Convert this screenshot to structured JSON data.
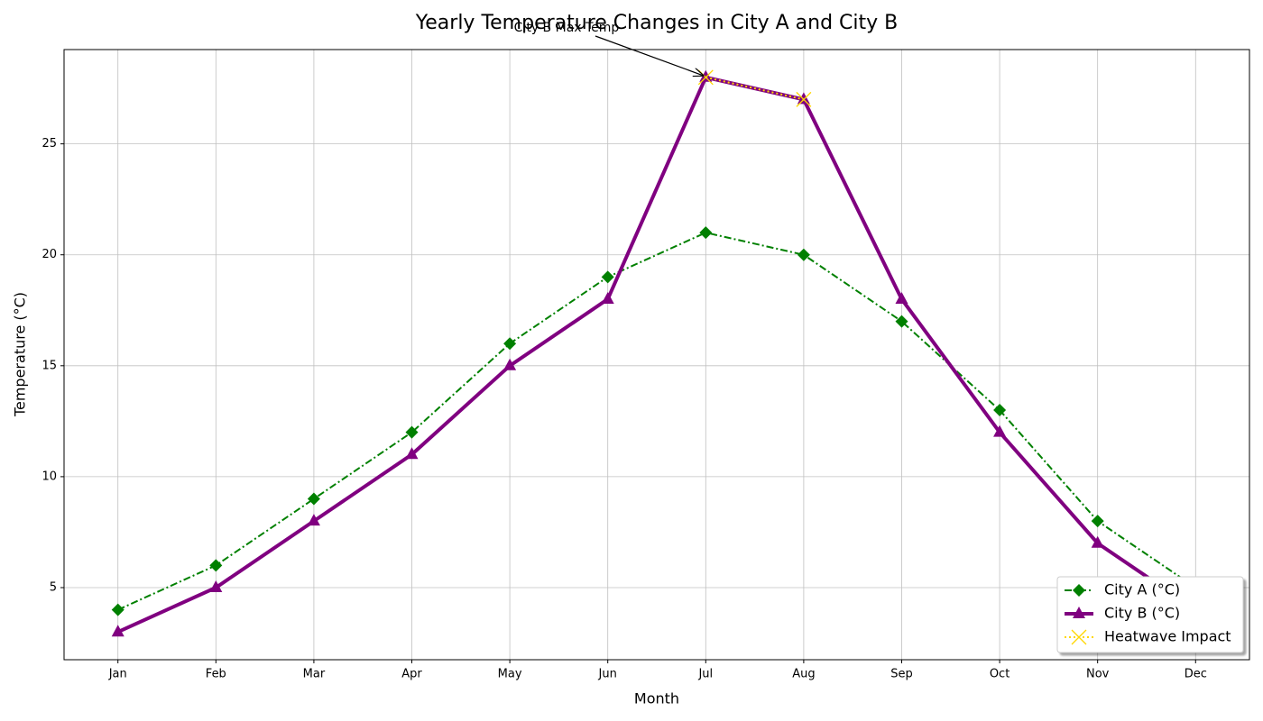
{
  "chart_data": {
    "type": "line",
    "title": "Yearly Temperature Changes in City A and City B",
    "x_label": "Month",
    "y_label": "Temperature (°C)",
    "categories": [
      "Jan",
      "Feb",
      "Mar",
      "Apr",
      "May",
      "Jun",
      "Jul",
      "Aug",
      "Sep",
      "Oct",
      "Nov",
      "Dec"
    ],
    "series": [
      {
        "name": "City A (°C)",
        "color": "#008000",
        "marker": "diamond",
        "linestyle": "dashdot",
        "linewidth": 2,
        "values": [
          4,
          6,
          9,
          12,
          16,
          19,
          21,
          20,
          17,
          13,
          8,
          5
        ]
      },
      {
        "name": "City B (°C)",
        "color": "#800080",
        "marker": "triangle",
        "linestyle": "solid",
        "linewidth": 4,
        "values": [
          3,
          5,
          8,
          11,
          15,
          18,
          28,
          27,
          18,
          12,
          7,
          4
        ]
      },
      {
        "name": "Heatwave Impact",
        "color": "#ffd700",
        "marker": "x",
        "linestyle": "dotted",
        "linewidth": 2,
        "values": [
          null,
          null,
          null,
          null,
          null,
          null,
          28,
          27,
          null,
          null,
          null,
          null
        ]
      }
    ],
    "ylim": [
      1.75,
      29.25
    ],
    "yticks": [
      5,
      10,
      15,
      20,
      25
    ],
    "grid": true,
    "legend": "lower right",
    "annotation": {
      "text": "City B Max Temp",
      "series": 1,
      "index": 6
    }
  }
}
